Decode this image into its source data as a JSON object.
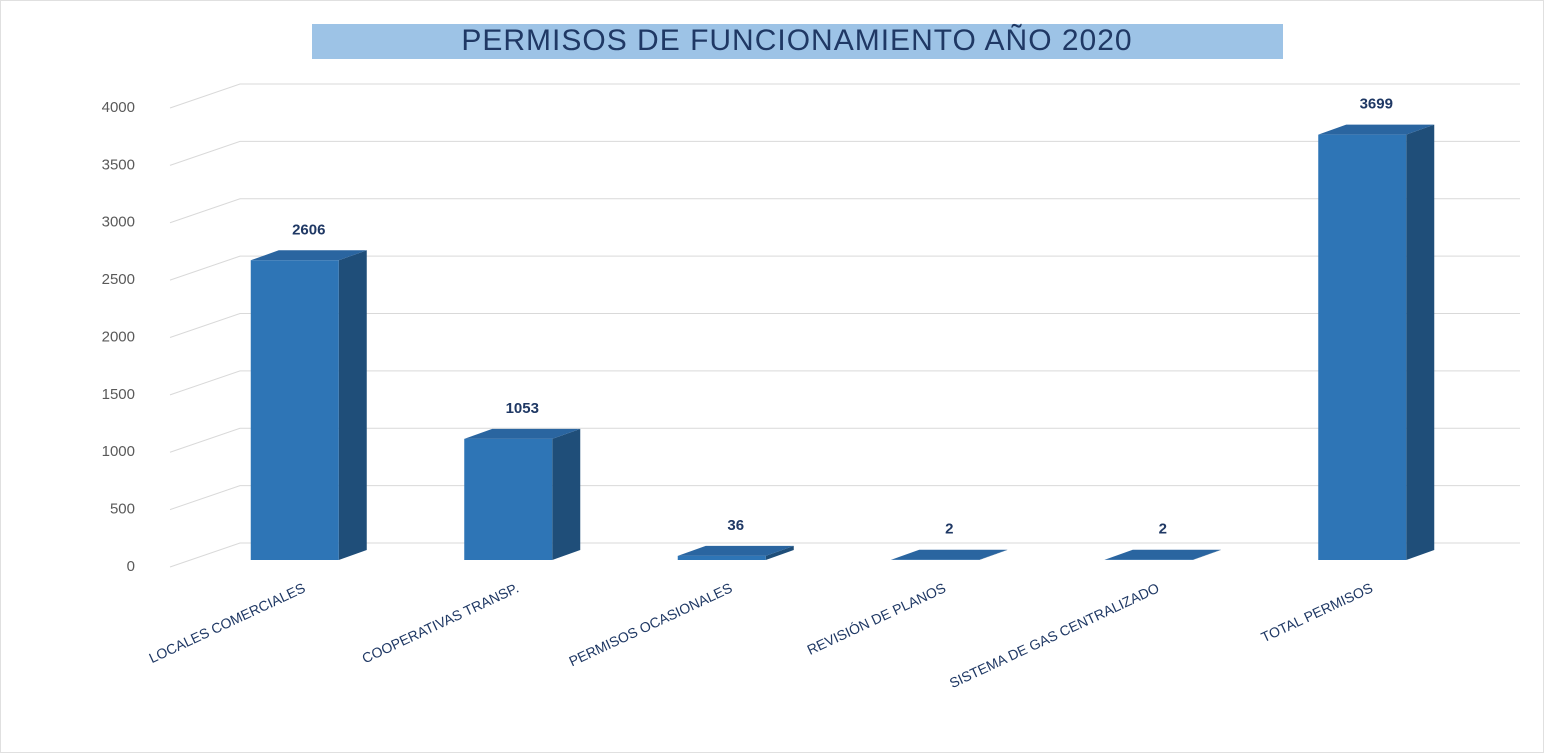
{
  "chart_data": {
    "type": "bar3d",
    "title": "PERMISOS DE FUNCIONAMIENTO AÑO 2020",
    "categories": [
      "LOCALES COMERCIALES",
      "COOPERATIVAS TRANSP.",
      "PERMISOS OCASIONALES",
      "REVISIÓN DE PLANOS",
      "SISTEMA DE GAS CENTRALIZADO",
      "TOTAL PERMISOS"
    ],
    "values": [
      2606,
      1053,
      36,
      2,
      2,
      3699
    ],
    "color": "#2e75b6",
    "ylim": [
      0,
      4000
    ],
    "yticks": [
      0,
      500,
      1000,
      1500,
      2000,
      2500,
      3000,
      3500,
      4000
    ],
    "grid": true
  }
}
